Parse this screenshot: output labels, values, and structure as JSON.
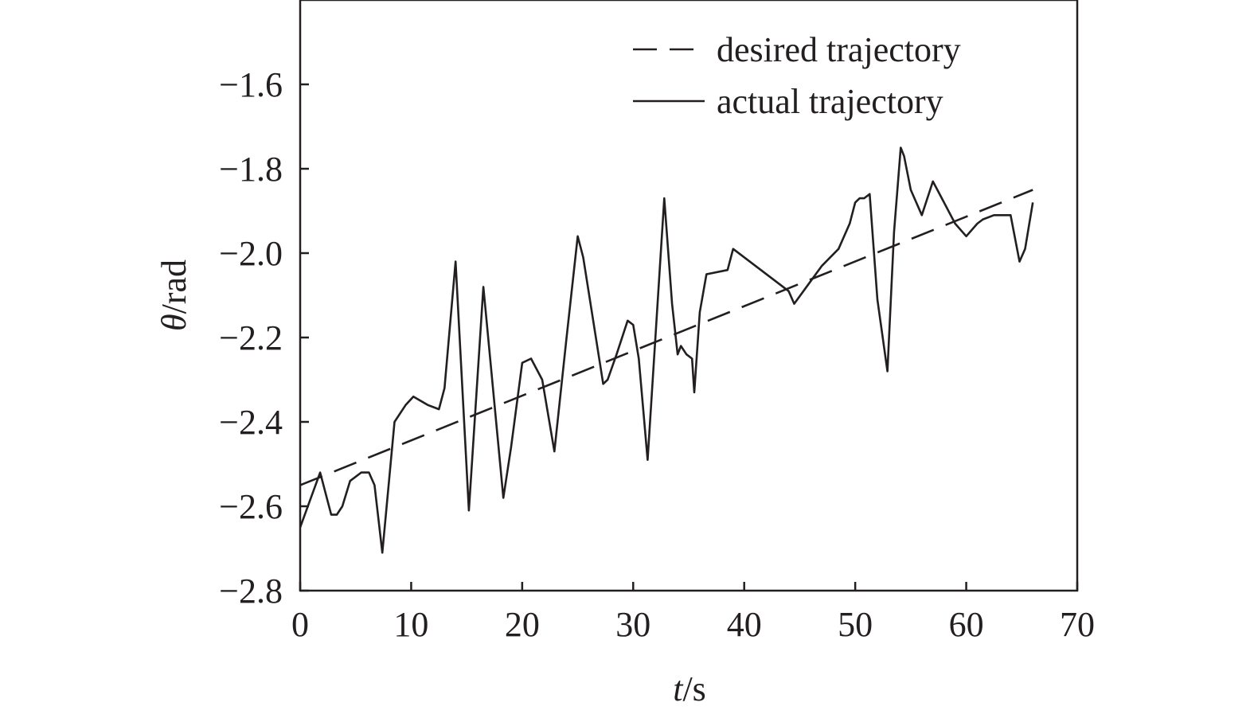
{
  "chart_data": {
    "type": "line",
    "title": "",
    "xlabel_var": "t",
    "xlabel_unit": "/s",
    "ylabel_var": "θ",
    "ylabel_unit": "/rad",
    "xlim": [
      0,
      70
    ],
    "ylim": [
      -2.8,
      -1.4
    ],
    "xticks": [
      0,
      10,
      20,
      30,
      40,
      50,
      60,
      70
    ],
    "xtick_labels": [
      "0",
      "10",
      "20",
      "30",
      "40",
      "50",
      "60",
      "70"
    ],
    "yticks": [
      -2.8,
      -2.6,
      -2.4,
      -2.2,
      -2.0,
      -1.8,
      -1.6
    ],
    "ytick_labels": [
      "−2.8",
      "−2.6",
      "−2.4",
      "−2.2",
      "−2.0",
      "−1.8",
      "−1.6"
    ],
    "grid": false,
    "legend_position": "top-right",
    "series": [
      {
        "name": "desired trajectory",
        "style": "dashed",
        "color": "#231f20",
        "x": [
          0,
          66
        ],
        "y": [
          -2.55,
          -1.85
        ]
      },
      {
        "name": "actual trajectory",
        "style": "solid",
        "color": "#231f20",
        "x": [
          0,
          1.8,
          2.8,
          3.3,
          3.8,
          4.5,
          5.5,
          6.2,
          6.7,
          7.4,
          8.5,
          9.5,
          10.2,
          11.5,
          12.5,
          13.0,
          14.0,
          15.2,
          16.5,
          18.3,
          19.0,
          20.0,
          20.8,
          21.8,
          22.9,
          24.0,
          25.0,
          25.5,
          27.3,
          27.7,
          28.5,
          29.5,
          30.0,
          30.5,
          31.3,
          32.8,
          33.5,
          34.0,
          34.3,
          34.8,
          35.3,
          35.5,
          36.0,
          36.6,
          38.5,
          39.0,
          44.0,
          44.5,
          47.0,
          48.5,
          49.5,
          50.0,
          50.4,
          50.8,
          51.3,
          52.0,
          52.9,
          53.5,
          54.1,
          54.4,
          55.0,
          56.0,
          57.0,
          58.0,
          59.0,
          60.0,
          61.0,
          61.5,
          62.5,
          63.0,
          64.0,
          64.8,
          65.3,
          66.0
        ],
        "y": [
          -2.65,
          -2.52,
          -2.62,
          -2.62,
          -2.6,
          -2.54,
          -2.52,
          -2.52,
          -2.55,
          -2.71,
          -2.4,
          -2.36,
          -2.34,
          -2.36,
          -2.37,
          -2.32,
          -2.02,
          -2.61,
          -2.08,
          -2.58,
          -2.46,
          -2.26,
          -2.25,
          -2.3,
          -2.47,
          -2.2,
          -1.96,
          -2.01,
          -2.31,
          -2.3,
          -2.24,
          -2.16,
          -2.17,
          -2.25,
          -2.49,
          -1.87,
          -2.12,
          -2.24,
          -2.22,
          -2.24,
          -2.25,
          -2.33,
          -2.14,
          -2.05,
          -2.04,
          -1.99,
          -2.09,
          -2.12,
          -2.03,
          -1.99,
          -1.93,
          -1.88,
          -1.87,
          -1.87,
          -1.86,
          -2.11,
          -2.28,
          -1.95,
          -1.75,
          -1.77,
          -1.85,
          -1.91,
          -1.83,
          -1.88,
          -1.93,
          -1.96,
          -1.93,
          -1.92,
          -1.91,
          -1.91,
          -1.91,
          -2.02,
          -1.99,
          -1.88
        ]
      }
    ]
  }
}
